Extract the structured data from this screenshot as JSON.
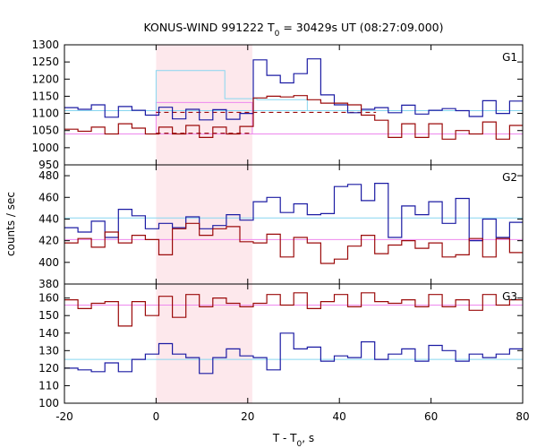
{
  "chart_data": {
    "type": "line",
    "title": "KONUS-WIND 991222 T",
    "title_sub": "0",
    "title_rest": " = 30429s UT (08:27:09.000)",
    "xlabel_main": "T - T",
    "xlabel_sub": "0",
    "xlabel_unit": ", s",
    "ylabel": "counts / sec",
    "xlim": [
      -20,
      80
    ],
    "x_ticks": [
      "-20",
      "0",
      "20",
      "40",
      "60",
      "80"
    ],
    "x_tick_values": [
      -20,
      0,
      20,
      40,
      60,
      80
    ],
    "highlight_interval": [
      0,
      21
    ],
    "bin_width": 2.944,
    "grid": false,
    "colors": {
      "highlight": "#fde8ec",
      "blue": "#1b1ba3",
      "red": "#9b0a0a",
      "bg_cyan": "#87d6f0",
      "bg_pink": "#ee88ee"
    },
    "panels": [
      {
        "label": "G1",
        "ylim": [
          950,
          1300
        ],
        "yticks": [
          950,
          1000,
          1050,
          1100,
          1150,
          1200,
          1250,
          1300
        ],
        "series": [
          {
            "color": "blue",
            "values": [
              1117,
              1112,
              1125,
              1089,
              1120,
              1109,
              1095,
              1118,
              1084,
              1112,
              1081,
              1111,
              1083,
              1100,
              1256,
              1211,
              1189,
              1216,
              1259,
              1154,
              1125,
              1102,
              1112,
              1117,
              1102,
              1124,
              1098,
              1109,
              1114,
              1108,
              1091,
              1137,
              1100,
              1136,
              1087,
              1117,
              1111,
              1089,
              1120,
              1102,
              1126,
              1112,
              1123,
              1087,
              1098,
              1111,
              1099,
              1106,
              1124,
              1099,
              1093,
              1114,
              1108,
              1105,
              1119,
              1119,
              1103,
              1101,
              1101,
              1101,
              1101
            ]
          },
          {
            "color": "red",
            "values": [
              1054,
              1048,
              1060,
              1040,
              1070,
              1057,
              1040,
              1060,
              1040,
              1065,
              1030,
              1060,
              1040,
              1062,
              1145,
              1150,
              1148,
              1152,
              1140,
              1130,
              1130,
              1125,
              1095,
              1080,
              1030,
              1070,
              1030,
              1070,
              1025,
              1050,
              1040,
              1075,
              1025,
              1065,
              1040,
              1020,
              1060,
              1040,
              1060,
              1045,
              1020,
              1080,
              1040,
              1075,
              1030,
              1045,
              1048,
              1050,
              1060,
              1032,
              1075,
              1040,
              1060,
              1030,
              1045,
              1020,
              1050,
              1025,
              1040,
              1030,
              1030
            ]
          }
        ],
        "bg_lines": [
          {
            "color": "bg_cyan",
            "value": 1108
          },
          {
            "color": "bg_pink",
            "value": 1040
          }
        ],
        "steps": [
          {
            "color": "bg_cyan",
            "x": [
              0,
              7.6,
              15.0,
              22.0,
              33.0
            ],
            "y": [
              1225,
              1225,
              1143,
              1140,
              1108
            ]
          }
        ],
        "dashed": [
          {
            "color": "red",
            "x1": 0,
            "x2": 48,
            "value": 1103
          },
          {
            "color": "red",
            "x1": 0,
            "x2": 21,
            "value": 1042
          }
        ],
        "box": {
          "color": "bg_pink",
          "x1": 0,
          "x2": 21,
          "value": 1132
        }
      },
      {
        "label": "G2",
        "ylim": [
          380,
          490
        ],
        "yticks": [
          380,
          400,
          420,
          440,
          460,
          480
        ],
        "series": [
          {
            "color": "blue",
            "values": [
              432,
              428,
              438,
              423,
              449,
              443,
              431,
              436,
              432,
              442,
              431,
              434,
              444,
              439,
              456,
              460,
              446,
              454,
              444,
              445,
              470,
              472,
              457,
              473,
              423,
              452,
              444,
              456,
              436,
              459,
              420,
              440,
              423,
              437,
              418,
              443,
              435,
              421,
              441,
              441,
              434,
              446,
              425,
              437,
              418,
              452,
              419,
              434,
              438,
              427,
              444,
              443,
              412,
              437,
              433,
              445,
              437,
              431,
              435,
              435,
              435
            ]
          },
          {
            "color": "red",
            "values": [
              418,
              422,
              414,
              428,
              418,
              425,
              421,
              407,
              431,
              436,
              425,
              431,
              433,
              419,
              418,
              426,
              405,
              423,
              418,
              399,
              403,
              415,
              425,
              408,
              416,
              420,
              413,
              418,
              405,
              407,
              422,
              405,
              422,
              409,
              419,
              428,
              420,
              420,
              410,
              423,
              418,
              424,
              407,
              421,
              420,
              430,
              421,
              435,
              425,
              413,
              423,
              425,
              407,
              424,
              419,
              426,
              401,
              425,
              426,
              426,
              426
            ]
          }
        ],
        "bg_lines": [
          {
            "color": "bg_cyan",
            "value": 441
          },
          {
            "color": "bg_pink",
            "value": 421
          }
        ],
        "steps": [],
        "dashed": [],
        "box": null
      },
      {
        "label": "G3",
        "ylim": [
          100,
          168
        ],
        "yticks": [
          100,
          110,
          120,
          130,
          140,
          150,
          160
        ],
        "series": [
          {
            "color": "red",
            "values": [
              159,
              154,
              157,
              158,
              144,
              158,
              150,
              161,
              149,
              162,
              155,
              160,
              157,
              155,
              157,
              162,
              156,
              163,
              154,
              158,
              162,
              155,
              163,
              158,
              157,
              159,
              155,
              162,
              155,
              159,
              153,
              162,
              156,
              159,
              155,
              162,
              158,
              162,
              161,
              154,
              148,
              159,
              160,
              157,
              146,
              159,
              154,
              157,
              150,
              163,
              155,
              159,
              148,
              163,
              155,
              159,
              153,
              160,
              157,
              157,
              157
            ]
          },
          {
            "color": "blue",
            "values": [
              120,
              119,
              118,
              123,
              118,
              125,
              128,
              134,
              128,
              126,
              117,
              126,
              131,
              127,
              126,
              119,
              140,
              131,
              132,
              124,
              127,
              126,
              135,
              125,
              128,
              131,
              124,
              133,
              130,
              124,
              128,
              126,
              128,
              131,
              124,
              126,
              128,
              125,
              131,
              120,
              123,
              126,
              128,
              128,
              119,
              124,
              126,
              124,
              128,
              124,
              128,
              131,
              124,
              125,
              126,
              128,
              119,
              126,
              128,
              128,
              128
            ]
          }
        ],
        "bg_lines": [
          {
            "color": "bg_pink",
            "value": 156
          },
          {
            "color": "bg_cyan",
            "value": 125
          }
        ],
        "steps": [],
        "dashed": [],
        "box": null
      }
    ]
  }
}
